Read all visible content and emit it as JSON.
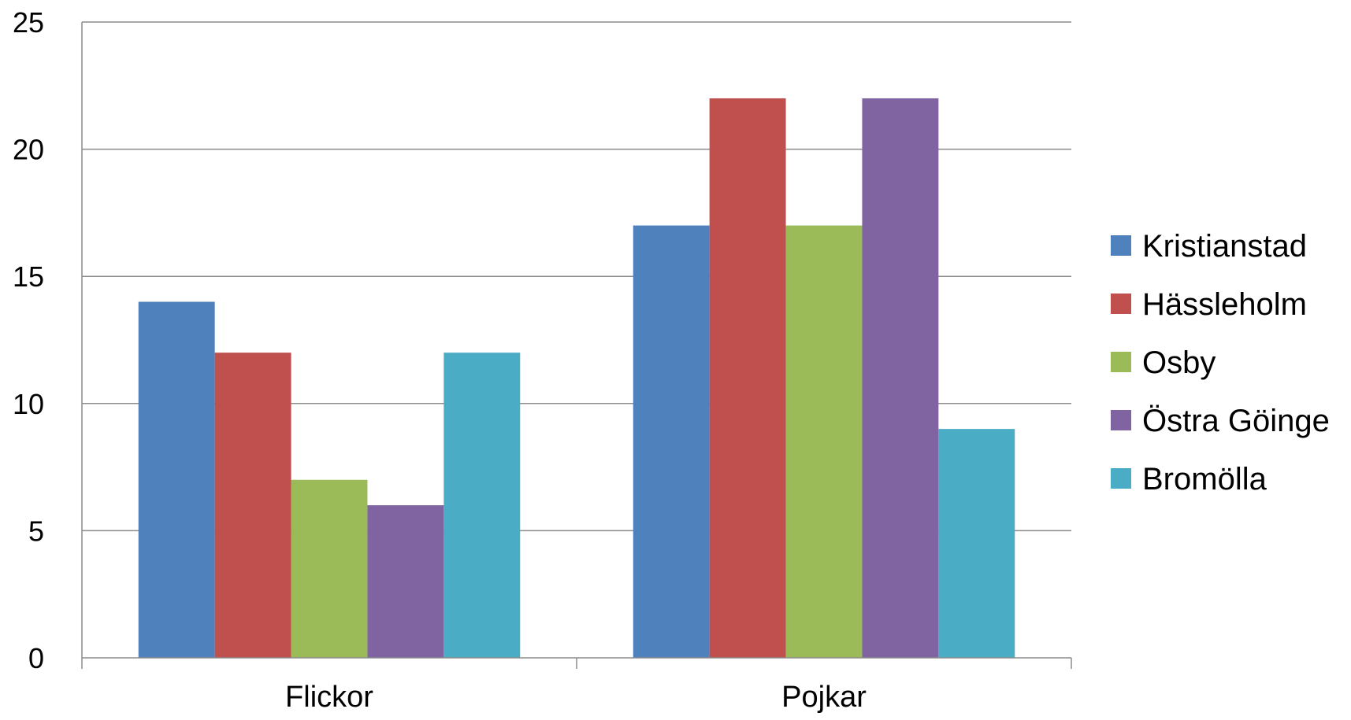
{
  "chart_data": {
    "type": "bar",
    "categories": [
      "Flickor",
      "Pojkar"
    ],
    "series": [
      {
        "name": "Kristianstad",
        "values": [
          14,
          17
        ],
        "color": "#4F81BD"
      },
      {
        "name": "Hässleholm",
        "values": [
          12,
          22
        ],
        "color": "#C0504D"
      },
      {
        "name": "Osby",
        "values": [
          7,
          17
        ],
        "color": "#9BBB59"
      },
      {
        "name": "Östra Göinge",
        "values": [
          6,
          22
        ],
        "color": "#8064A2"
      },
      {
        "name": "Bromölla",
        "values": [
          12,
          9
        ],
        "color": "#4BACC6"
      }
    ],
    "ylim": [
      0,
      25
    ],
    "yticks": [
      0,
      5,
      10,
      15,
      20,
      25
    ],
    "grid": true,
    "legend_position": "right",
    "title": "",
    "xlabel": "",
    "ylabel": ""
  }
}
